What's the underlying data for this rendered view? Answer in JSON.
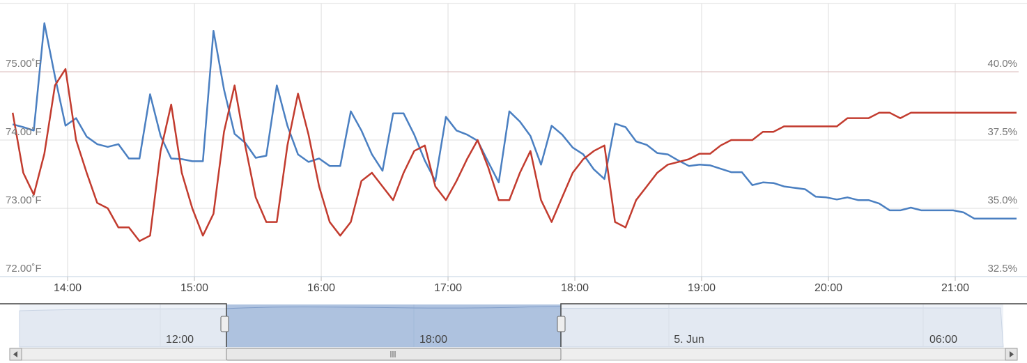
{
  "chart_data": {
    "type": "line",
    "x": [
      "13:34",
      "13:39",
      "13:44",
      "13:49",
      "13:54",
      "13:59",
      "14:04",
      "14:09",
      "14:14",
      "14:19",
      "14:24",
      "14:29",
      "14:34",
      "14:39",
      "14:44",
      "14:49",
      "14:54",
      "14:59",
      "15:04",
      "15:09",
      "15:14",
      "15:19",
      "15:24",
      "15:29",
      "15:34",
      "15:39",
      "15:44",
      "15:49",
      "15:54",
      "15:59",
      "16:04",
      "16:09",
      "16:14",
      "16:19",
      "16:24",
      "16:29",
      "16:34",
      "16:39",
      "16:44",
      "16:49",
      "16:54",
      "16:59",
      "17:04",
      "17:09",
      "17:14",
      "17:19",
      "17:24",
      "17:29",
      "17:34",
      "17:39",
      "17:44",
      "17:49",
      "17:54",
      "17:59",
      "18:04",
      "18:09",
      "18:14",
      "18:19",
      "18:24",
      "18:29",
      "18:34",
      "18:39",
      "18:44",
      "18:49",
      "18:54",
      "18:59",
      "19:04",
      "19:09",
      "19:14",
      "19:19",
      "19:24",
      "19:29",
      "19:34",
      "19:39",
      "19:44",
      "19:49",
      "19:54",
      "19:59",
      "20:04",
      "20:09",
      "20:14",
      "20:19",
      "20:24",
      "20:29",
      "20:34",
      "20:39",
      "20:44",
      "20:49",
      "20:54",
      "20:59",
      "21:04",
      "21:09",
      "21:14",
      "21:19",
      "21:24",
      "21:29"
    ],
    "series": [
      {
        "color": "#4a7fc1",
        "axis": "y",
        "values": [
          74.23,
          74.19,
          74.14,
          75.71,
          74.93,
          74.21,
          74.32,
          74.05,
          73.94,
          73.9,
          73.94,
          73.73,
          73.73,
          74.67,
          74.06,
          73.73,
          73.72,
          73.69,
          73.69,
          75.6,
          74.74,
          74.09,
          73.96,
          73.74,
          73.77,
          74.8,
          74.21,
          73.79,
          73.68,
          73.73,
          73.62,
          73.62,
          74.42,
          74.14,
          73.79,
          73.55,
          74.39,
          74.39,
          74.08,
          73.7,
          73.4,
          74.34,
          74.14,
          74.08,
          73.99,
          73.68,
          73.38,
          74.42,
          74.27,
          74.06,
          73.64,
          74.21,
          74.08,
          73.89,
          73.79,
          73.57,
          73.43,
          74.24,
          74.19,
          73.98,
          73.93,
          73.81,
          73.79,
          73.7,
          73.62,
          73.64,
          73.63,
          73.58,
          73.53,
          73.53,
          73.34,
          73.38,
          73.37,
          73.32,
          73.3,
          73.28,
          73.17,
          73.16,
          73.13,
          73.16,
          73.12,
          73.12,
          73.07,
          72.97,
          72.97,
          73.01,
          72.97,
          72.97,
          72.97,
          72.97,
          72.94,
          72.85,
          72.85,
          72.85,
          72.85,
          72.85
        ]
      },
      {
        "color": "#c23b2e",
        "axis": "y2",
        "values": [
          38.5,
          36.3,
          35.5,
          37.0,
          39.5,
          40.1,
          37.5,
          36.3,
          35.2,
          35.0,
          34.3,
          34.3,
          33.8,
          34.0,
          37.1,
          38.8,
          36.3,
          35.0,
          34.0,
          34.8,
          37.8,
          39.5,
          37.3,
          35.4,
          34.5,
          34.5,
          37.3,
          39.2,
          37.7,
          35.8,
          34.5,
          34.0,
          34.5,
          36.0,
          36.3,
          35.8,
          35.3,
          36.3,
          37.1,
          37.3,
          35.8,
          35.3,
          36.0,
          36.8,
          37.5,
          36.5,
          35.3,
          35.3,
          36.3,
          37.1,
          35.3,
          34.5,
          35.4,
          36.3,
          36.8,
          37.1,
          37.3,
          34.5,
          34.3,
          35.3,
          35.8,
          36.3,
          36.6,
          36.7,
          36.8,
          37.0,
          37.0,
          37.3,
          37.5,
          37.5,
          37.5,
          37.8,
          37.8,
          38.0,
          38.0,
          38.0,
          38.0,
          38.0,
          38.0,
          38.3,
          38.3,
          38.3,
          38.5,
          38.5,
          38.3,
          38.5,
          38.5,
          38.5,
          38.5,
          38.5,
          38.5,
          38.5,
          38.5,
          38.5,
          38.5,
          38.5
        ]
      }
    ],
    "xlim": [
      "13:28",
      "21:30"
    ],
    "xticks": [
      "14:00",
      "15:00",
      "16:00",
      "17:00",
      "18:00",
      "19:00",
      "20:00",
      "21:00"
    ],
    "ylim": [
      72,
      76
    ],
    "yticks": [
      {
        "value": 72,
        "label": "72.00˚F"
      },
      {
        "value": 73,
        "label": "73.00˚F"
      },
      {
        "value": 74,
        "label": "74.00˚F"
      },
      {
        "value": 75,
        "label": "75.00˚F"
      }
    ],
    "y2lim": [
      32.5,
      42.5
    ],
    "y2ticks": [
      {
        "value": 32.5,
        "label": "32.5%"
      },
      {
        "value": 35,
        "label": "35.0%"
      },
      {
        "value": 37.5,
        "label": "37.5%"
      },
      {
        "value": 40,
        "label": "40.0%"
      }
    ],
    "grid": true,
    "navigator": {
      "labels": [
        "12:00",
        "18:00",
        "5. Jun",
        "06:00"
      ]
    }
  }
}
